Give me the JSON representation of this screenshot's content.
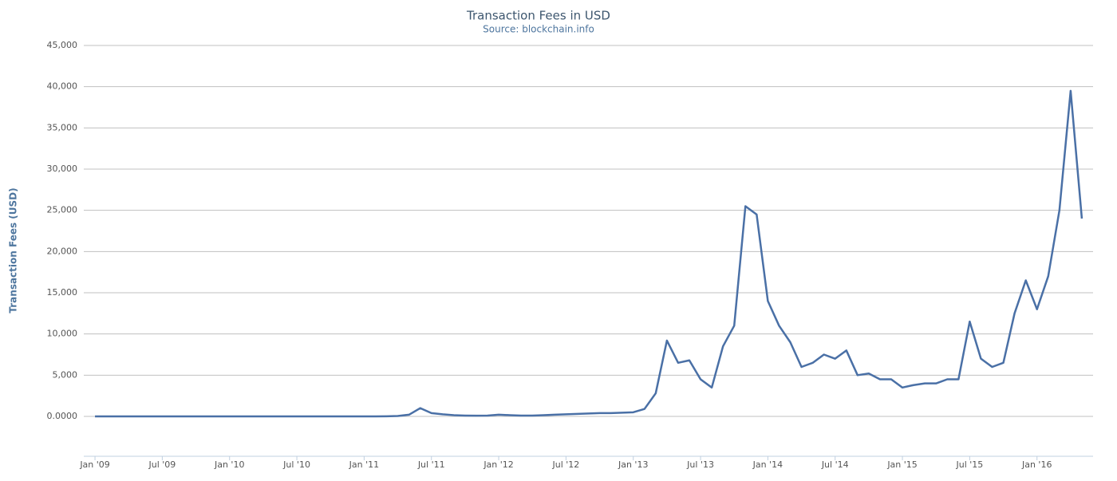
{
  "chart_data": {
    "type": "line",
    "title": "Transaction Fees in USD",
    "subtitle": "Source: blockchain.info",
    "y_label": "Transaction Fees (USD)",
    "color": "#4a70a6",
    "grid": true,
    "x": [
      "2009-01",
      "2009-02",
      "2009-03",
      "2009-04",
      "2009-05",
      "2009-06",
      "2009-07",
      "2009-08",
      "2009-09",
      "2009-10",
      "2009-11",
      "2009-12",
      "2010-01",
      "2010-02",
      "2010-03",
      "2010-04",
      "2010-05",
      "2010-06",
      "2010-07",
      "2010-08",
      "2010-09",
      "2010-10",
      "2010-11",
      "2010-12",
      "2011-01",
      "2011-02",
      "2011-03",
      "2011-04",
      "2011-05",
      "2011-06",
      "2011-07",
      "2011-08",
      "2011-09",
      "2011-10",
      "2011-11",
      "2011-12",
      "2012-01",
      "2012-02",
      "2012-03",
      "2012-04",
      "2012-05",
      "2012-06",
      "2012-07",
      "2012-08",
      "2012-09",
      "2012-10",
      "2012-11",
      "2012-12",
      "2013-01",
      "2013-02",
      "2013-03",
      "2013-04",
      "2013-05",
      "2013-06",
      "2013-07",
      "2013-08",
      "2013-09",
      "2013-10",
      "2013-11",
      "2013-12",
      "2014-01",
      "2014-02",
      "2014-03",
      "2014-04",
      "2014-05",
      "2014-06",
      "2014-07",
      "2014-08",
      "2014-09",
      "2014-10",
      "2014-11",
      "2014-12",
      "2015-01",
      "2015-02",
      "2015-03",
      "2015-04",
      "2015-05",
      "2015-06",
      "2015-07",
      "2015-08",
      "2015-09",
      "2015-10",
      "2015-11",
      "2015-12",
      "2016-01",
      "2016-02",
      "2016-03",
      "2016-04",
      "2016-05"
    ],
    "values": [
      0,
      0,
      0,
      0,
      0,
      0,
      0,
      0,
      0,
      0,
      0,
      0,
      0,
      0,
      0,
      0,
      0,
      0,
      0,
      0,
      0,
      0,
      0,
      0,
      0,
      0,
      10,
      50,
      200,
      1000,
      400,
      250,
      150,
      100,
      80,
      100,
      200,
      150,
      100,
      100,
      150,
      200,
      250,
      300,
      350,
      400,
      400,
      450,
      500,
      900,
      2800,
      9200,
      6500,
      6800,
      4500,
      3500,
      8500,
      11000,
      25500,
      24500,
      14000,
      11000,
      9000,
      6000,
      6500,
      7500,
      7000,
      8000,
      5000,
      5200,
      4500,
      4500,
      3500,
      3800,
      4000,
      4000,
      4500,
      4500,
      11500,
      7000,
      6000,
      6500,
      12500,
      16500,
      13000,
      17000,
      25000,
      39500,
      24000
    ],
    "xlim": [
      "2008-12",
      "2016-06"
    ],
    "xticks": [
      {
        "value": "2009-01",
        "label": "Jan '09"
      },
      {
        "value": "2009-07",
        "label": "Jul '09"
      },
      {
        "value": "2010-01",
        "label": "Jan '10"
      },
      {
        "value": "2010-07",
        "label": "Jul '10"
      },
      {
        "value": "2011-01",
        "label": "Jan '11"
      },
      {
        "value": "2011-07",
        "label": "Jul '11"
      },
      {
        "value": "2012-01",
        "label": "Jan '12"
      },
      {
        "value": "2012-07",
        "label": "Jul '12"
      },
      {
        "value": "2013-01",
        "label": "Jan '13"
      },
      {
        "value": "2013-07",
        "label": "Jul '13"
      },
      {
        "value": "2014-01",
        "label": "Jan '14"
      },
      {
        "value": "2014-07",
        "label": "Jul '14"
      },
      {
        "value": "2015-01",
        "label": "Jan '15"
      },
      {
        "value": "2015-07",
        "label": "Jul '15"
      },
      {
        "value": "2016-01",
        "label": "Jan '16"
      }
    ],
    "ylim": [
      -4840,
      45000
    ],
    "yticks": [
      {
        "value": 0,
        "label": "0.0000"
      },
      {
        "value": 5000,
        "label": "5,000"
      },
      {
        "value": 10000,
        "label": "10,000"
      },
      {
        "value": 15000,
        "label": "15,000"
      },
      {
        "value": 20000,
        "label": "20,000"
      },
      {
        "value": 25000,
        "label": "25,000"
      },
      {
        "value": 30000,
        "label": "30,000"
      },
      {
        "value": 35000,
        "label": "35,000"
      },
      {
        "value": 40000,
        "label": "40,000"
      },
      {
        "value": 45000,
        "label": "45,000"
      }
    ]
  }
}
